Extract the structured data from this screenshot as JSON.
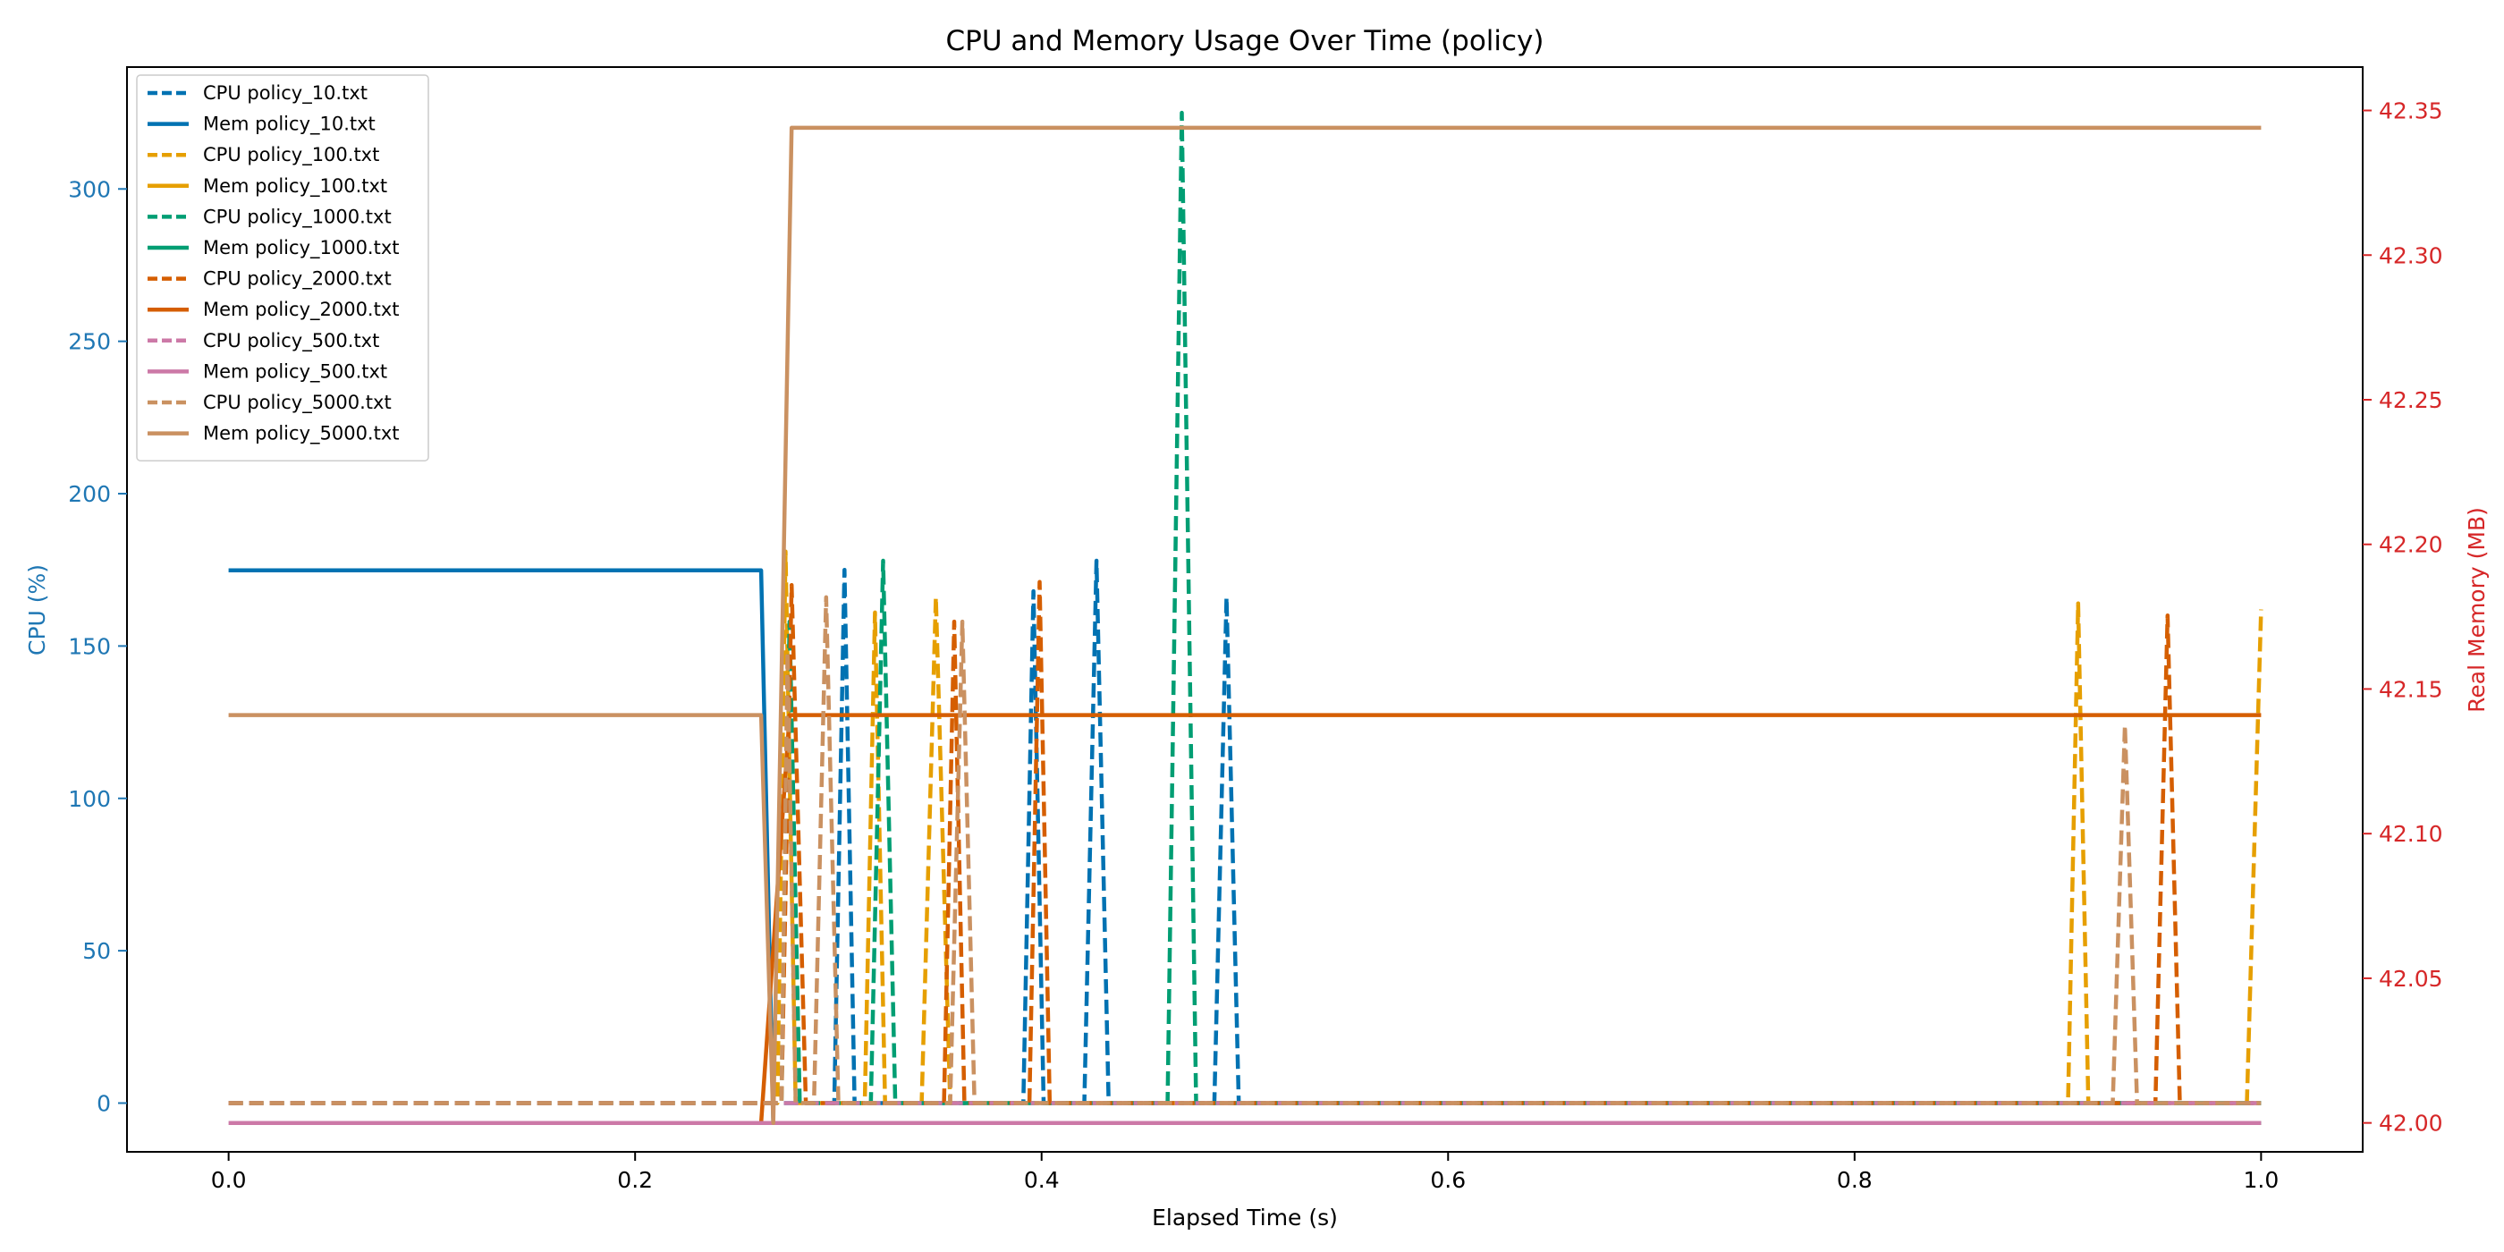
{
  "chart_data": {
    "type": "line",
    "title": "CPU and Memory Usage Over Time (policy)",
    "xlabel": "Elapsed Time (s)",
    "ylabel_left": "CPU (%)",
    "ylabel_right": "Real Memory (MB)",
    "left_axis_color": "#1f77b4",
    "right_axis_color": "#d62728",
    "xlim": [
      -0.05,
      1.05
    ],
    "ylim_left": [
      -16,
      340
    ],
    "ylim_right": [
      41.99,
      42.365
    ],
    "x_ticks": [
      0.0,
      0.2,
      0.4,
      0.6,
      0.8,
      1.0
    ],
    "x_tick_labels": [
      "0.0",
      "0.2",
      "0.4",
      "0.6",
      "0.8",
      "1.0"
    ],
    "y_left_ticks": [
      0,
      50,
      100,
      150,
      200,
      250,
      300
    ],
    "y_left_tick_labels": [
      "0",
      "50",
      "100",
      "150",
      "200",
      "250",
      "300"
    ],
    "y_right_ticks": [
      42.0,
      42.05,
      42.1,
      42.15,
      42.2,
      42.25,
      42.3,
      42.35
    ],
    "y_right_tick_labels": [
      "42.00",
      "42.05",
      "42.10",
      "42.15",
      "42.20",
      "42.25",
      "42.30",
      "42.35"
    ],
    "grid": false,
    "legend_position": "top-left",
    "series": [
      {
        "name": "CPU policy_10.txt",
        "axis": "left",
        "style": "dashed",
        "color": "#0072b2",
        "x": [
          0,
          0.26,
          0.298,
          0.303,
          0.308,
          0.391,
          0.396,
          0.401,
          0.421,
          0.427,
          0.433,
          0.485,
          0.491,
          0.497,
          1.0
        ],
        "y": [
          0,
          0,
          0,
          175,
          0,
          0,
          168,
          0,
          0,
          178,
          0,
          0,
          166,
          0,
          0
        ]
      },
      {
        "name": "Mem policy_10.txt",
        "axis": "right",
        "style": "solid",
        "color": "#0072b2",
        "x": [
          0,
          0.262,
          0.268
        ],
        "y": [
          42.191,
          42.191,
          42.0
        ]
      },
      {
        "name": "CPU policy_100.txt",
        "axis": "left",
        "style": "dashed",
        "color": "#e69f00",
        "x": [
          0,
          0.26,
          0.27,
          0.274,
          0.279,
          0.313,
          0.318,
          0.323,
          0.341,
          0.348,
          0.355,
          0.905,
          0.91,
          0.915,
          0.993,
          1.0
        ],
        "y": [
          0,
          0,
          0,
          181,
          0,
          0,
          161,
          0,
          0,
          166,
          0,
          0,
          164,
          0,
          0,
          162
        ]
      },
      {
        "name": "Mem policy_100.txt",
        "axis": "right",
        "style": "solid",
        "color": "#e69f00",
        "x": [
          0.262,
          1.0
        ],
        "y": [
          42.0,
          42.0
        ]
      },
      {
        "name": "CPU policy_1000.txt",
        "axis": "left",
        "style": "dashed",
        "color": "#009e73",
        "x": [
          0,
          0.26,
          0.272,
          0.276,
          0.281,
          0.316,
          0.322,
          0.328,
          0.462,
          0.469,
          0.476,
          1.0
        ],
        "y": [
          0,
          0,
          0,
          158,
          0,
          0,
          178,
          0,
          0,
          325,
          0,
          0
        ]
      },
      {
        "name": "Mem policy_1000.txt",
        "axis": "right",
        "style": "solid",
        "color": "#009e73",
        "x": [
          0.262,
          1.0
        ],
        "y": [
          42.0,
          42.0
        ]
      },
      {
        "name": "CPU policy_2000.txt",
        "axis": "left",
        "style": "dashed",
        "color": "#d55e00",
        "x": [
          0,
          0.26,
          0.268,
          0.272,
          0.277,
          0.284,
          0.352,
          0.357,
          0.362,
          0.394,
          0.399,
          0.404,
          0.948,
          0.954,
          0.96,
          1.0
        ],
        "y": [
          0,
          0,
          0,
          0,
          170,
          0,
          0,
          158,
          0,
          0,
          171,
          0,
          0,
          160,
          0,
          0
        ]
      },
      {
        "name": "Mem policy_2000.txt",
        "axis": "right",
        "style": "solid",
        "color": "#d55e00",
        "x": [
          0.262,
          0.276,
          1.0
        ],
        "y": [
          42.0,
          42.141,
          42.141
        ]
      },
      {
        "name": "CPU policy_500.txt",
        "axis": "left",
        "style": "dashed",
        "color": "#cc79a7",
        "x": [
          0,
          1.0
        ],
        "y": [
          0,
          0
        ]
      },
      {
        "name": "Mem policy_500.txt",
        "axis": "right",
        "style": "solid",
        "color": "#cc79a7",
        "x": [
          0,
          1.0
        ],
        "y": [
          42.0,
          42.0
        ]
      },
      {
        "name": "CPU policy_5000.txt",
        "axis": "left",
        "style": "dashed",
        "color": "#ca9161",
        "x": [
          0,
          0.26,
          0.272,
          0.275,
          0.279,
          0.288,
          0.294,
          0.3,
          0.355,
          0.361,
          0.367,
          0.927,
          0.933,
          0.939,
          1.0
        ],
        "y": [
          0,
          0,
          0,
          148,
          0,
          0,
          166,
          0,
          0,
          158,
          0,
          0,
          124,
          0,
          0
        ]
      },
      {
        "name": "Mem policy_5000.txt",
        "axis": "right",
        "style": "solid",
        "color": "#ca9161",
        "x": [
          0,
          0.262,
          0.268,
          0.277,
          1.0
        ],
        "y": [
          42.141,
          42.141,
          42.0,
          42.344,
          42.344
        ]
      }
    ]
  }
}
